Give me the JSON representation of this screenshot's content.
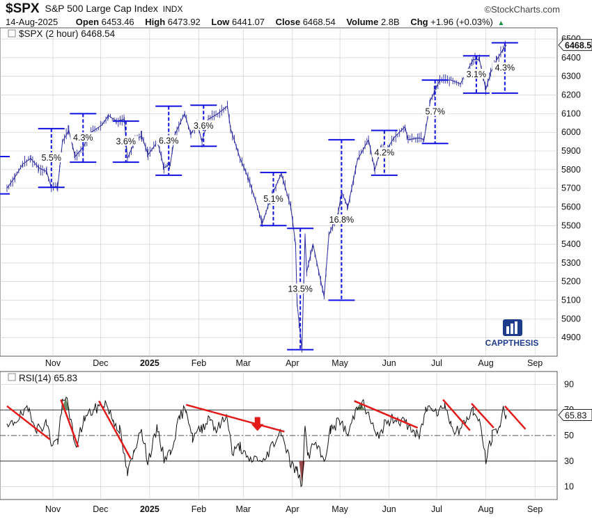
{
  "header": {
    "symbol": "$SPX",
    "name": "S&P 500 Large Cap Index",
    "exchange": "INDX",
    "brand": "©StockCharts.com",
    "date": "14-Aug-2025",
    "open_label": "Open",
    "open": "6453.46",
    "high_label": "High",
    "high": "6473.92",
    "low_label": "Low",
    "low": "6441.07",
    "close_label": "Close",
    "close": "6468.54",
    "volume_label": "Volume",
    "volume": "2.8B",
    "chg_label": "Chg",
    "chg": "+1.96 (+0.03%)",
    "chg_arrow": "▲"
  },
  "watermark": {
    "text": "CAPPTHESIS",
    "color": "#1f3b8c"
  },
  "colors": {
    "price": "#2b2b9e",
    "markup": "#1010e0",
    "trend": "#e31a1a",
    "rsi": "#111111",
    "grid": "#c8c8c8"
  },
  "chart_data": [
    {
      "type": "line",
      "legend": "$SPX (2 hour) 6468.54",
      "last_value_label": "6468.54",
      "ylim": [
        4800,
        6560
      ],
      "y_ticks": [
        4900,
        5000,
        5100,
        5200,
        5300,
        5400,
        5500,
        5600,
        5700,
        5800,
        5900,
        6000,
        6100,
        6200,
        6300,
        6400,
        6500
      ],
      "x_range": [
        "2024-10-03",
        "2025-09-15"
      ],
      "x_ticks": [
        {
          "date": "2024-11-01",
          "label": "Nov"
        },
        {
          "date": "2024-12-01",
          "label": "Dec"
        },
        {
          "date": "2025-01-01",
          "label": "2025",
          "bold": true
        },
        {
          "date": "2025-02-01",
          "label": "Feb"
        },
        {
          "date": "2025-03-01",
          "label": "Mar"
        },
        {
          "date": "2025-04-01",
          "label": "Apr"
        },
        {
          "date": "2025-05-01",
          "label": "May"
        },
        {
          "date": "2025-06-01",
          "label": "Jun"
        },
        {
          "date": "2025-07-01",
          "label": "Jul"
        },
        {
          "date": "2025-08-01",
          "label": "Aug"
        },
        {
          "date": "2025-09-01",
          "label": "Sep"
        }
      ],
      "series": [
        {
          "points": [
            [
              "2024-10-03",
              5700
            ],
            [
              "2024-10-08",
              5760
            ],
            [
              "2024-10-13",
              5830
            ],
            [
              "2024-10-18",
              5860
            ],
            [
              "2024-10-23",
              5810
            ],
            [
              "2024-10-28",
              5790
            ],
            [
              "2024-10-31",
              5705
            ],
            [
              "2024-11-04",
              5710
            ],
            [
              "2024-11-07",
              5950
            ],
            [
              "2024-11-11",
              6010
            ],
            [
              "2024-11-15",
              5870
            ],
            [
              "2024-11-20",
              5920
            ],
            [
              "2024-11-25",
              6000
            ],
            [
              "2024-12-02",
              6040
            ],
            [
              "2024-12-06",
              6090
            ],
            [
              "2024-12-11",
              6060
            ],
            [
              "2024-12-16",
              6070
            ],
            [
              "2024-12-18",
              5860
            ],
            [
              "2024-12-23",
              5960
            ],
            [
              "2024-12-27",
              5980
            ],
            [
              "2024-12-31",
              5880
            ],
            [
              "2025-01-06",
              5950
            ],
            [
              "2025-01-10",
              5810
            ],
            [
              "2025-01-14",
              5830
            ],
            [
              "2025-01-17",
              5990
            ],
            [
              "2025-01-23",
              6100
            ],
            [
              "2025-01-27",
              5990
            ],
            [
              "2025-01-31",
              6050
            ],
            [
              "2025-02-03",
              5950
            ],
            [
              "2025-02-07",
              6070
            ],
            [
              "2025-02-13",
              6100
            ],
            [
              "2025-02-19",
              6140
            ],
            [
              "2025-02-21",
              6020
            ],
            [
              "2025-02-27",
              5860
            ],
            [
              "2025-03-04",
              5760
            ],
            [
              "2025-03-10",
              5600
            ],
            [
              "2025-03-13",
              5510
            ],
            [
              "2025-03-18",
              5640
            ],
            [
              "2025-03-25",
              5780
            ],
            [
              "2025-03-31",
              5600
            ],
            [
              "2025-04-03",
              5400
            ],
            [
              "2025-04-04",
              5080
            ],
            [
              "2025-04-07",
              4840
            ],
            [
              "2025-04-09",
              5450
            ],
            [
              "2025-04-10",
              5250
            ],
            [
              "2025-04-14",
              5400
            ],
            [
              "2025-04-21",
              5120
            ],
            [
              "2025-04-24",
              5450
            ],
            [
              "2025-04-30",
              5570
            ],
            [
              "2025-05-02",
              5680
            ],
            [
              "2025-05-06",
              5600
            ],
            [
              "2025-05-12",
              5850
            ],
            [
              "2025-05-19",
              5960
            ],
            [
              "2025-05-23",
              5800
            ],
            [
              "2025-05-27",
              5920
            ],
            [
              "2025-05-30",
              5900
            ],
            [
              "2025-06-04",
              5970
            ],
            [
              "2025-06-11",
              6030
            ],
            [
              "2025-06-13",
              5960
            ],
            [
              "2025-06-20",
              5970
            ],
            [
              "2025-06-23",
              5960
            ],
            [
              "2025-06-27",
              6170
            ],
            [
              "2025-07-03",
              6280
            ],
            [
              "2025-07-10",
              6280
            ],
            [
              "2025-07-16",
              6260
            ],
            [
              "2025-07-24",
              6390
            ],
            [
              "2025-07-28",
              6390
            ],
            [
              "2025-08-01",
              6230
            ],
            [
              "2025-08-04",
              6320
            ],
            [
              "2025-08-08",
              6390
            ],
            [
              "2025-08-12",
              6445
            ],
            [
              "2025-08-14",
              6468
            ]
          ]
        }
      ],
      "annotations": [
        {
          "label": "5.5%",
          "x": "2024-10-31",
          "low": 5705,
          "high": 6020
        },
        {
          "label": "4.3%",
          "x": "2024-11-20",
          "low": 5840,
          "high": 6100
        },
        {
          "label": "3.6%",
          "x": "2024-12-17",
          "low": 5840,
          "high": 6060
        },
        {
          "label": "6.3%",
          "x": "2025-01-13",
          "low": 5770,
          "high": 6140
        },
        {
          "label": "3.6%",
          "x": "2025-02-04",
          "low": 5925,
          "high": 6145
        },
        {
          "label": "5.1%",
          "x": "2025-03-20",
          "low": 5500,
          "high": 5785
        },
        {
          "label": "13.5%",
          "x": "2025-04-06",
          "low": 4835,
          "high": 5485
        },
        {
          "label": "16.8%",
          "x": "2025-05-02",
          "low": 5100,
          "high": 5960
        },
        {
          "label": "4.2%",
          "x": "2025-05-29",
          "low": 5770,
          "high": 6010
        },
        {
          "label": "5.7%",
          "x": "2025-06-30",
          "low": 5940,
          "high": 6280
        },
        {
          "label": "3.1%",
          "x": "2025-07-26",
          "low": 6210,
          "high": 6410
        },
        {
          "label": "4.3%",
          "x": "2025-08-13",
          "low": 6210,
          "high": 6480
        }
      ],
      "partial_range": {
        "x": "2024-10-03",
        "low": 5670,
        "high": 5870
      }
    },
    {
      "type": "line",
      "legend": "RSI(14) 65.83",
      "last_value_label": "65.83",
      "ylim": [
        0,
        100
      ],
      "y_ticks": [
        10,
        30,
        50,
        70,
        90
      ],
      "levels": {
        "overbought": 70,
        "oversold": 30,
        "mid": 50
      },
      "series": [
        {
          "points": [
            [
              "2024-10-03",
              55
            ],
            [
              "2024-10-10",
              64
            ],
            [
              "2024-10-17",
              70
            ],
            [
              "2024-10-22",
              55
            ],
            [
              "2024-10-28",
              60
            ],
            [
              "2024-10-31",
              44
            ],
            [
              "2024-11-04",
              46
            ],
            [
              "2024-11-07",
              74
            ],
            [
              "2024-11-10",
              79
            ],
            [
              "2024-11-15",
              40
            ],
            [
              "2024-11-21",
              64
            ],
            [
              "2024-11-27",
              70
            ],
            [
              "2024-12-04",
              76
            ],
            [
              "2024-12-09",
              62
            ],
            [
              "2024-12-13",
              55
            ],
            [
              "2024-12-18",
              20
            ],
            [
              "2024-12-22",
              36
            ],
            [
              "2024-12-26",
              56
            ],
            [
              "2024-12-31",
              30
            ],
            [
              "2025-01-06",
              56
            ],
            [
              "2025-01-10",
              32
            ],
            [
              "2025-01-14",
              37
            ],
            [
              "2025-01-20",
              64
            ],
            [
              "2025-01-24",
              72
            ],
            [
              "2025-01-28",
              48
            ],
            [
              "2025-02-03",
              56
            ],
            [
              "2025-02-08",
              65
            ],
            [
              "2025-02-12",
              54
            ],
            [
              "2025-02-19",
              66
            ],
            [
              "2025-02-22",
              36
            ],
            [
              "2025-02-27",
              42
            ],
            [
              "2025-03-04",
              30
            ],
            [
              "2025-03-10",
              33
            ],
            [
              "2025-03-13",
              27
            ],
            [
              "2025-03-18",
              40
            ],
            [
              "2025-03-25",
              54
            ],
            [
              "2025-03-31",
              28
            ],
            [
              "2025-04-04",
              22
            ],
            [
              "2025-04-07",
              12
            ],
            [
              "2025-04-09",
              55
            ],
            [
              "2025-04-11",
              34
            ],
            [
              "2025-04-15",
              44
            ],
            [
              "2025-04-21",
              30
            ],
            [
              "2025-04-25",
              54
            ],
            [
              "2025-05-01",
              62
            ],
            [
              "2025-05-06",
              50
            ],
            [
              "2025-05-12",
              74
            ],
            [
              "2025-05-15",
              76
            ],
            [
              "2025-05-21",
              60
            ],
            [
              "2025-05-24",
              48
            ],
            [
              "2025-05-29",
              58
            ],
            [
              "2025-06-04",
              64
            ],
            [
              "2025-06-11",
              60
            ],
            [
              "2025-06-16",
              54
            ],
            [
              "2025-06-20",
              48
            ],
            [
              "2025-06-24",
              70
            ],
            [
              "2025-06-28",
              74
            ],
            [
              "2025-07-02",
              68
            ],
            [
              "2025-07-06",
              75
            ],
            [
              "2025-07-10",
              58
            ],
            [
              "2025-07-15",
              52
            ],
            [
              "2025-07-20",
              64
            ],
            [
              "2025-07-24",
              70
            ],
            [
              "2025-07-29",
              56
            ],
            [
              "2025-08-01",
              30
            ],
            [
              "2025-08-05",
              50
            ],
            [
              "2025-08-10",
              58
            ],
            [
              "2025-08-12",
              70
            ],
            [
              "2025-08-14",
              66
            ]
          ]
        }
      ],
      "trendlines": [
        {
          "from": [
            "2024-10-03",
            73
          ],
          "to": [
            "2024-10-30",
            47
          ]
        },
        {
          "from": [
            "2024-11-06",
            78
          ],
          "to": [
            "2024-11-17",
            41
          ]
        },
        {
          "from": [
            "2024-11-30",
            77
          ],
          "to": [
            "2024-12-20",
            32
          ]
        },
        {
          "from": [
            "2025-01-24",
            74
          ],
          "to": [
            "2025-03-27",
            53
          ]
        },
        {
          "from": [
            "2025-05-10",
            77
          ],
          "to": [
            "2025-06-19",
            56
          ]
        },
        {
          "from": [
            "2025-07-05",
            78
          ],
          "to": [
            "2025-07-22",
            54
          ]
        },
        {
          "from": [
            "2025-07-23",
            75
          ],
          "to": [
            "2025-08-06",
            56
          ]
        },
        {
          "from": [
            "2025-08-13",
            73
          ],
          "to": [
            "2025-08-26",
            55
          ]
        }
      ],
      "arrow": {
        "x": "2025-03-10",
        "y": 59
      },
      "overbought_fills": [
        {
          "x": "2024-11-09",
          "peak": 79
        },
        {
          "x": "2025-05-14",
          "peak": 76
        }
      ],
      "oversold_fills": [
        {
          "x": "2025-04-07",
          "trough": 12
        }
      ]
    }
  ]
}
